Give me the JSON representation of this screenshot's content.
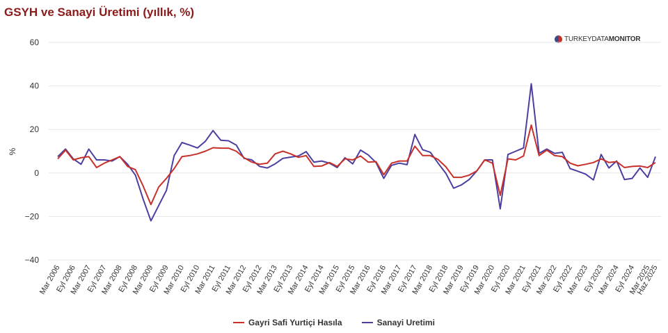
{
  "chart_data": {
    "type": "line",
    "title": "GSYH ve Sanayi Üretimi (yıllık, %)",
    "ylabel": "%",
    "xlabel": "",
    "ylim": [
      -40,
      60
    ],
    "yticks": [
      60,
      40,
      20,
      0,
      -20,
      -40
    ],
    "grid": true,
    "legend": "bottom",
    "x_tick_labels": [
      "Mar 2006",
      "Eyl 2006",
      "Mar 2007",
      "Eyl 2007",
      "Mar 2008",
      "Eyl 2008",
      "Mar 2009",
      "Eyl 2009",
      "Mar 2010",
      "Eyl 2010",
      "Mar 2011",
      "Eyl 2011",
      "Mar 2012",
      "Eyl 2012",
      "Mar 2013",
      "Eyl 2013",
      "Mar 2014",
      "Eyl 2014",
      "Mar 2015",
      "Eyl 2015",
      "Mar 2016",
      "Eyl 2016",
      "Mar 2017",
      "Eyl 2017",
      "Mar 2018",
      "Eyl 2018",
      "Mar 2019",
      "Eyl 2019",
      "Mar 2020",
      "Eyl 2020",
      "Mar 2021",
      "Eyl 2021",
      "Mar 2022",
      "Eyl 2022",
      "Mar 2023",
      "Eyl 2023",
      "Mar 2024",
      "Eyl 2024",
      "Mar 2025",
      "Haz 2025"
    ],
    "series": [
      {
        "name": "Gayri Safi Yurtiçi Hasıla",
        "color": "#c8302a",
        "values": [
          6.5,
          10.5,
          6,
          7,
          7.5,
          2.5,
          4.5,
          6,
          7.5,
          3,
          1.5,
          -6,
          -14.5,
          -6.5,
          -2.5,
          2,
          7.5,
          8,
          8.8,
          10,
          11.6,
          11.4,
          11.4,
          10,
          7,
          5,
          4,
          4.5,
          8.8,
          10,
          8.8,
          7.2,
          8,
          3,
          3.2,
          4.8,
          3,
          6.5,
          6,
          7.8,
          5,
          5.2,
          -0.8,
          4.5,
          5.5,
          5.5,
          12.3,
          8,
          8,
          6.2,
          2.8,
          -2,
          -2,
          -1,
          1,
          6,
          4.5,
          -10.3,
          6.5,
          6,
          7.8,
          22,
          8,
          10.5,
          8,
          7.5,
          4.5,
          3.3,
          4,
          4.8,
          6.5,
          4.8,
          5.2,
          2.5,
          3,
          3.2,
          2.5,
          4.8
        ]
      },
      {
        "name": "Sanayi Uretimi",
        "color": "#4a3fa0",
        "values": [
          7.5,
          11,
          6.5,
          4,
          11,
          6,
          6,
          5.5,
          7.5,
          4,
          -1,
          -12,
          -22,
          -15,
          -8,
          8,
          14,
          12.8,
          11.5,
          14.5,
          19.5,
          15,
          14.8,
          12.8,
          6.7,
          6,
          3,
          2.3,
          4.2,
          6.7,
          7.3,
          7.8,
          9.8,
          5,
          5.5,
          4.5,
          2.5,
          7,
          4.2,
          10.5,
          8.3,
          4.8,
          -2.5,
          3.5,
          4.5,
          3.8,
          17.7,
          10.7,
          9.5,
          4.5,
          -0.2,
          -7,
          -5.5,
          -3,
          1,
          6,
          6,
          -16.5,
          8.5,
          10,
          11.5,
          41,
          9,
          11,
          9,
          9.5,
          2,
          0.8,
          -0.5,
          -3.2,
          8.5,
          2.3,
          5.5,
          -3,
          -2.5,
          2.3,
          -2,
          7.5
        ]
      }
    ]
  },
  "logo": {
    "text_light": "TURKEY",
    "text_mid": "DATA",
    "text_bold": "MONITOR"
  }
}
